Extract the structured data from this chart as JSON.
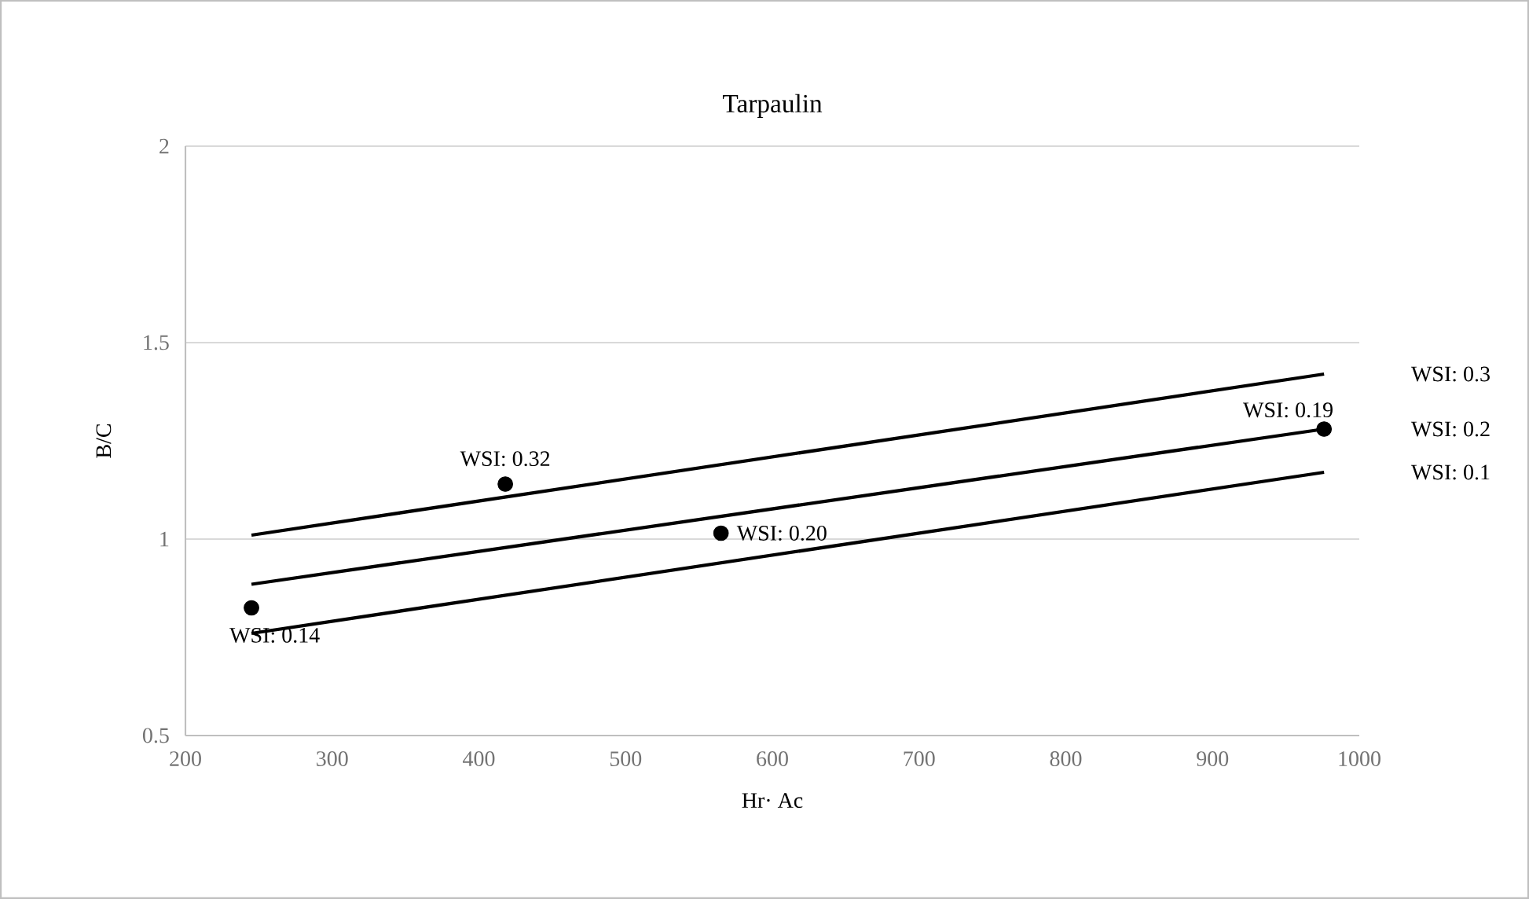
{
  "chart_data": {
    "type": "line",
    "title": "Tarpaulin",
    "xlabel": "Hr· Ac",
    "ylabel": "B/C",
    "xlim": [
      200,
      1000
    ],
    "xticks": [
      200,
      300,
      400,
      500,
      600,
      700,
      800,
      900,
      1000
    ],
    "ylim": [
      0.5,
      2
    ],
    "yticks": [
      0.5,
      1,
      1.5,
      2
    ],
    "grid": "y",
    "legend": false,
    "marker": "none",
    "line_style": "solid",
    "series": [
      {
        "name": "WSI: 0.3",
        "color": "#000000",
        "x": [
          245,
          976
        ],
        "values": [
          1.01,
          1.42
        ]
      },
      {
        "name": "WSI: 0.2",
        "color": "#000000",
        "x": [
          245,
          976
        ],
        "values": [
          0.885,
          1.28
        ]
      },
      {
        "name": "WSI: 0.1",
        "color": "#000000",
        "x": [
          245,
          976
        ],
        "values": [
          0.76,
          1.17
        ]
      },
      {
        "type": "scatter",
        "marker": "circle",
        "color": "#000000",
        "x": [
          245,
          418,
          565,
          976
        ],
        "values": [
          0.825,
          1.14,
          1.015,
          1.28
        ]
      }
    ],
    "annotations": [
      {
        "text": "WSI: 0.14",
        "x": 245,
        "y": 0.825
      },
      {
        "text": "WSI: 0.32",
        "x": 418,
        "y": 1.14
      },
      {
        "text": "WSI: 0.20",
        "x": 565,
        "y": 1.015
      },
      {
        "text": "WSI: 0.19",
        "x": 976,
        "y": 1.28
      }
    ]
  }
}
